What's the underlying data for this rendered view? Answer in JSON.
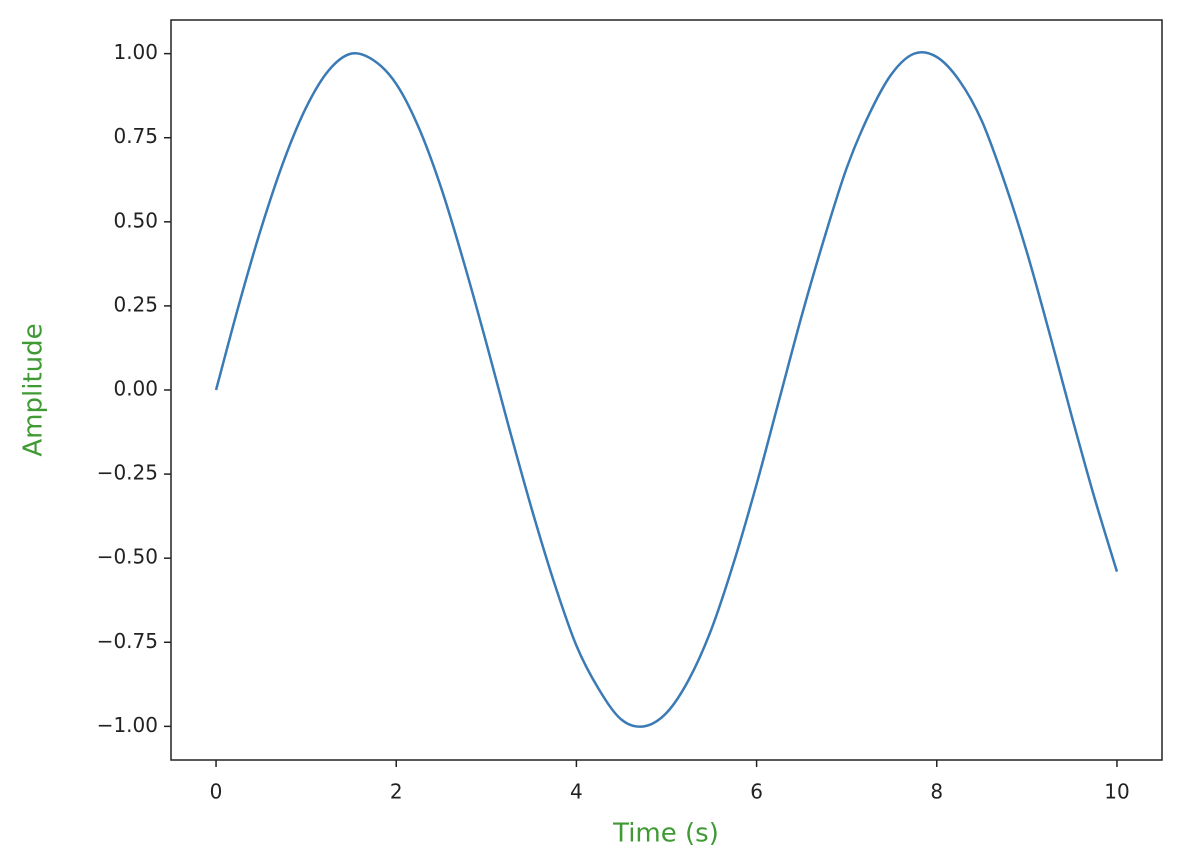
{
  "chart_data": {
    "type": "line",
    "xlabel": "Time (s)",
    "ylabel": "Amplitude",
    "label_color": "#3f9a34",
    "x": [
      0,
      0.25,
      0.5,
      0.75,
      1,
      1.25,
      1.5,
      1.75,
      2,
      2.25,
      2.5,
      2.75,
      3,
      3.25,
      3.5,
      3.75,
      4,
      4.25,
      4.5,
      4.75,
      5,
      5.25,
      5.5,
      5.75,
      6,
      6.25,
      6.5,
      6.75,
      7,
      7.25,
      7.5,
      7.75,
      8,
      8.25,
      8.5,
      8.75,
      9,
      9.25,
      9.5,
      9.75,
      10
    ],
    "series": [
      {
        "color": "#3a7ab5",
        "values": [
          0,
          0.25,
          0.48,
          0.68,
          0.84,
          0.95,
          1.0,
          0.98,
          0.91,
          0.78,
          0.6,
          0.38,
          0.14,
          -0.11,
          -0.35,
          -0.57,
          -0.76,
          -0.89,
          -0.98,
          -1.0,
          -0.96,
          -0.86,
          -0.71,
          -0.51,
          -0.28,
          -0.03,
          0.22,
          0.45,
          0.66,
          0.82,
          0.94,
          1.0,
          0.99,
          0.92,
          0.8,
          0.62,
          0.41,
          0.17,
          -0.08,
          -0.32,
          -0.54
        ]
      }
    ],
    "xlim": [
      -0.5,
      10.5
    ],
    "ylim": [
      -1.1,
      1.1
    ],
    "xticks": [
      0,
      2,
      4,
      6,
      8,
      10
    ],
    "yticks": [
      {
        "value": -1,
        "label": "−1.00"
      },
      {
        "value": -0.75,
        "label": "−0.75"
      },
      {
        "value": -0.5,
        "label": "−0.50"
      },
      {
        "value": -0.25,
        "label": "−0.25"
      },
      {
        "value": 0,
        "label": "0.00"
      },
      {
        "value": 0.25,
        "label": "0.25"
      },
      {
        "value": 0.5,
        "label": "0.50"
      },
      {
        "value": 0.75,
        "label": "0.75"
      },
      {
        "value": 1,
        "label": "1.00"
      }
    ],
    "grid": false
  }
}
